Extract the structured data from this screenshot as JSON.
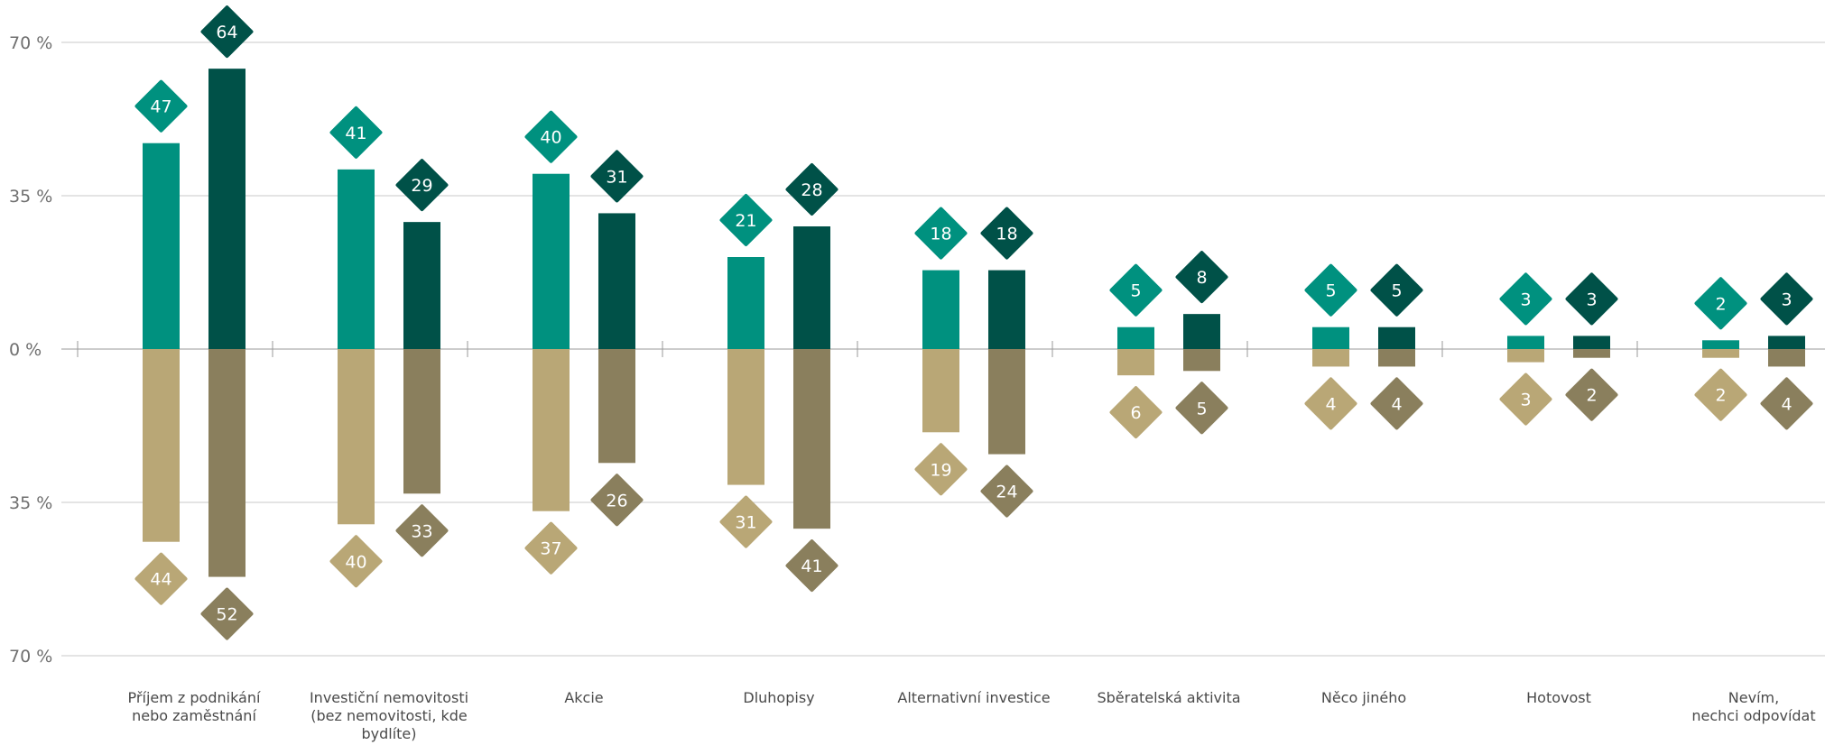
{
  "chart_data": {
    "type": "bar",
    "layout": "diverging-grouped",
    "axis": {
      "ylim": [
        -70,
        70
      ],
      "ticks": [
        70,
        35,
        0,
        -35,
        -70
      ],
      "tick_labels": [
        "70 %",
        "35 %",
        "0 %",
        "35 %",
        "70 %"
      ],
      "grid": true
    },
    "categories": [
      [
        "Příjem z podnikání",
        "nebo zaměstnání"
      ],
      [
        "Investiční nemovitosti",
        "(bez nemovitosti, kde",
        "bydlíte)"
      ],
      [
        "Akcie"
      ],
      [
        "Dluhopisy"
      ],
      [
        "Alternativní investice"
      ],
      [
        "Sběratelská aktivita"
      ],
      [
        "Něco jiného"
      ],
      [
        "Hotovost"
      ],
      [
        "Nevím,",
        "nechci odpovídat"
      ]
    ],
    "series": [
      {
        "direction": "up",
        "color": "#00917f",
        "values": [
          47,
          41,
          40,
          21,
          18,
          5,
          5,
          3,
          2
        ],
        "labels": [
          "47",
          "41",
          "40",
          "21",
          "18",
          "5",
          "5",
          "3",
          "2"
        ]
      },
      {
        "direction": "up",
        "color": "#005148",
        "values": [
          64,
          29,
          31,
          28,
          18,
          8,
          5,
          3,
          3
        ],
        "labels": [
          "64",
          "29",
          "31",
          "28",
          "18",
          "8",
          "5",
          "3",
          "3"
        ]
      },
      {
        "direction": "down",
        "color": "#b9a776",
        "values": [
          44,
          40,
          37,
          31,
          19,
          6,
          4,
          3,
          2
        ],
        "labels": [
          "44",
          "40",
          "37",
          "31",
          "19",
          "6",
          "4",
          "3",
          "2"
        ]
      },
      {
        "direction": "down",
        "color": "#8a7f5d",
        "values": [
          52,
          33,
          26,
          41,
          24,
          5,
          4,
          2,
          4
        ],
        "labels": [
          "52",
          "33",
          "26",
          "41",
          "24",
          "5",
          "4",
          "2",
          "4"
        ]
      }
    ],
    "colors": {
      "grid": "#c9c9c9",
      "axis": "#9a9a9a"
    }
  }
}
